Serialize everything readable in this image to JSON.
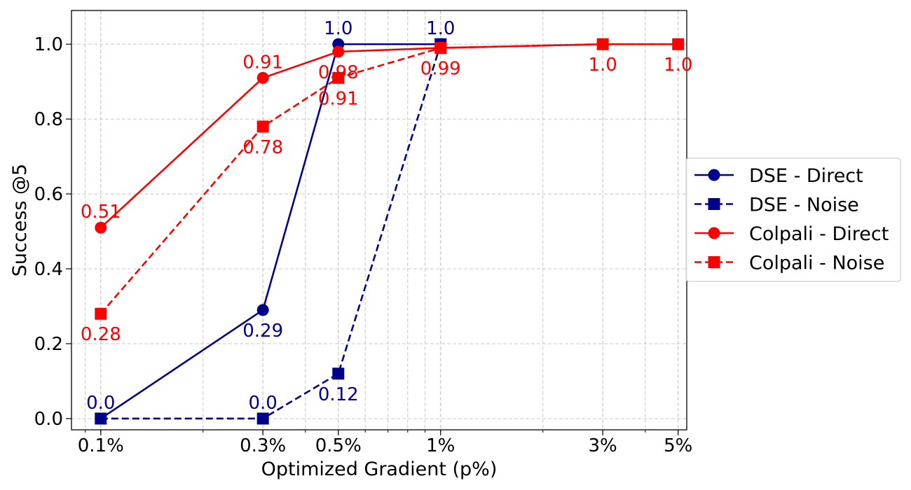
{
  "chart_data": {
    "type": "line",
    "xlabel": "Optimized Gradient (p%)",
    "ylabel": "Success @5",
    "xscale": "log",
    "x": [
      0.1,
      0.3,
      0.5,
      1,
      3,
      5
    ],
    "x_tick_labels": [
      "0.1%",
      "0.3%",
      "0.5%",
      "1%",
      "3%",
      "5%"
    ],
    "y_ticks": [
      0.0,
      0.2,
      0.4,
      0.6,
      0.8,
      1.0
    ],
    "y_tick_labels": [
      "0.0",
      "0.2",
      "0.4",
      "0.6",
      "0.8",
      "1.0"
    ],
    "ylim": [
      -0.03,
      1.09
    ],
    "xlim": [
      0.082,
      5.3
    ],
    "grid": true,
    "legend_position": "outside right",
    "series": [
      {
        "name": "DSE - Direct",
        "color": "#00008B",
        "marker": "circle",
        "linestyle": "solid",
        "x": [
          0.1,
          0.3,
          0.5,
          1
        ],
        "values": [
          0.0,
          0.29,
          1.0,
          1.0
        ],
        "labels": [
          "0.0",
          "0.29",
          "1.0",
          "1.0"
        ],
        "label_side": [
          "above",
          "below",
          "above",
          "above"
        ]
      },
      {
        "name": "DSE - Noise",
        "color": "#00008B",
        "marker": "square",
        "linestyle": "dashed",
        "x": [
          0.1,
          0.3,
          0.5,
          1
        ],
        "values": [
          0.0,
          0.0,
          0.12,
          1.0
        ],
        "labels": [
          "",
          "0.0",
          "0.12",
          ""
        ],
        "label_side": [
          "none",
          "above",
          "below",
          "none"
        ]
      },
      {
        "name": "Colpali - Direct",
        "color": "#FF0000",
        "marker": "circle",
        "linestyle": "solid",
        "x": [
          0.1,
          0.3,
          0.5,
          1,
          3,
          5
        ],
        "values": [
          0.51,
          0.91,
          0.98,
          0.99,
          1.0,
          1.0
        ],
        "labels": [
          "0.51",
          "0.91",
          "0.98",
          "",
          "",
          ""
        ],
        "label_side": [
          "above",
          "above",
          "below",
          "none",
          "none",
          "none"
        ]
      },
      {
        "name": "Colpali - Noise",
        "color": "#FF0000",
        "marker": "square",
        "linestyle": "dashed",
        "x": [
          0.1,
          0.3,
          0.5,
          1,
          3,
          5
        ],
        "values": [
          0.28,
          0.78,
          0.91,
          0.99,
          1.0,
          1.0
        ],
        "labels": [
          "0.28",
          "0.78",
          "0.91",
          "0.99",
          "1.0",
          "1.0"
        ],
        "label_side": [
          "below",
          "below",
          "below",
          "below",
          "below",
          "below"
        ]
      }
    ]
  }
}
